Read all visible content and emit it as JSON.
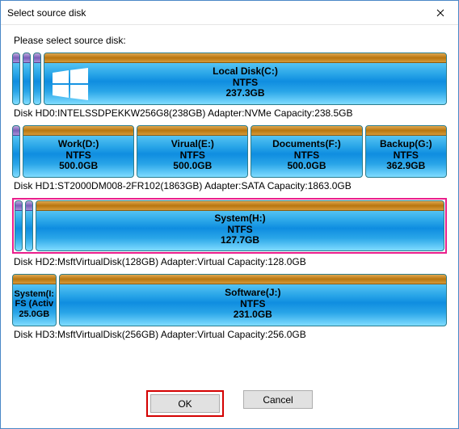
{
  "window": {
    "title": "Select source disk"
  },
  "prompt": "Please select source disk:",
  "disks": [
    {
      "info_prefix": "Disk HD0:",
      "model": "INTELSSDPEKKW256G8(238GB)",
      "adapter_label": "Adapter:",
      "adapter": "NVMe",
      "capacity_label": "Capacity:",
      "capacity": "238.5GB",
      "thin_slices": 3,
      "selected": false,
      "show_winlogo": true,
      "parts": [
        {
          "name": "Local Disk(C:)",
          "fs": "NTFS",
          "size": "237.3GB",
          "flex": 1
        }
      ]
    },
    {
      "info_prefix": "Disk HD1:",
      "model": "ST2000DM008-2FR102(1863GB)",
      "adapter_label": "Adapter:",
      "adapter": "SATA",
      "capacity_label": "Capacity:",
      "capacity": "1863.0GB",
      "thin_slices": 1,
      "selected": false,
      "show_winlogo": false,
      "parts": [
        {
          "name": "Work(D:)",
          "fs": "NTFS",
          "size": "500.0GB",
          "flex": 1
        },
        {
          "name": "Virual(E:)",
          "fs": "NTFS",
          "size": "500.0GB",
          "flex": 1
        },
        {
          "name": "Documents(F:)",
          "fs": "NTFS",
          "size": "500.0GB",
          "flex": 1
        },
        {
          "name": "Backup(G:)",
          "fs": "NTFS",
          "size": "362.9GB",
          "flex": 0.73
        }
      ]
    },
    {
      "info_prefix": "Disk HD2:",
      "model": "MsftVirtualDisk(128GB)",
      "adapter_label": "Adapter:",
      "adapter": "Virtual",
      "capacity_label": "Capacity:",
      "capacity": "128.0GB",
      "thin_slices": 2,
      "selected": true,
      "show_winlogo": false,
      "parts": [
        {
          "name": "System(H:)",
          "fs": "NTFS",
          "size": "127.7GB",
          "flex": 1
        }
      ]
    },
    {
      "info_prefix": "Disk HD3:",
      "model": "MsftVirtualDisk(256GB)",
      "adapter_label": "Adapter:",
      "adapter": "Virtual",
      "capacity_label": "Capacity:",
      "capacity": "256.0GB",
      "thin_slices": 0,
      "selected": false,
      "show_winlogo": false,
      "parts": [
        {
          "name": "System(I:",
          "fs": "FS (Activ",
          "size": "25.0GB",
          "flex": 0.11,
          "small": true
        },
        {
          "name": "Software(J:)",
          "fs": "NTFS",
          "size": "231.0GB",
          "flex": 1
        }
      ]
    }
  ],
  "buttons": {
    "ok": "OK",
    "cancel": "Cancel"
  }
}
